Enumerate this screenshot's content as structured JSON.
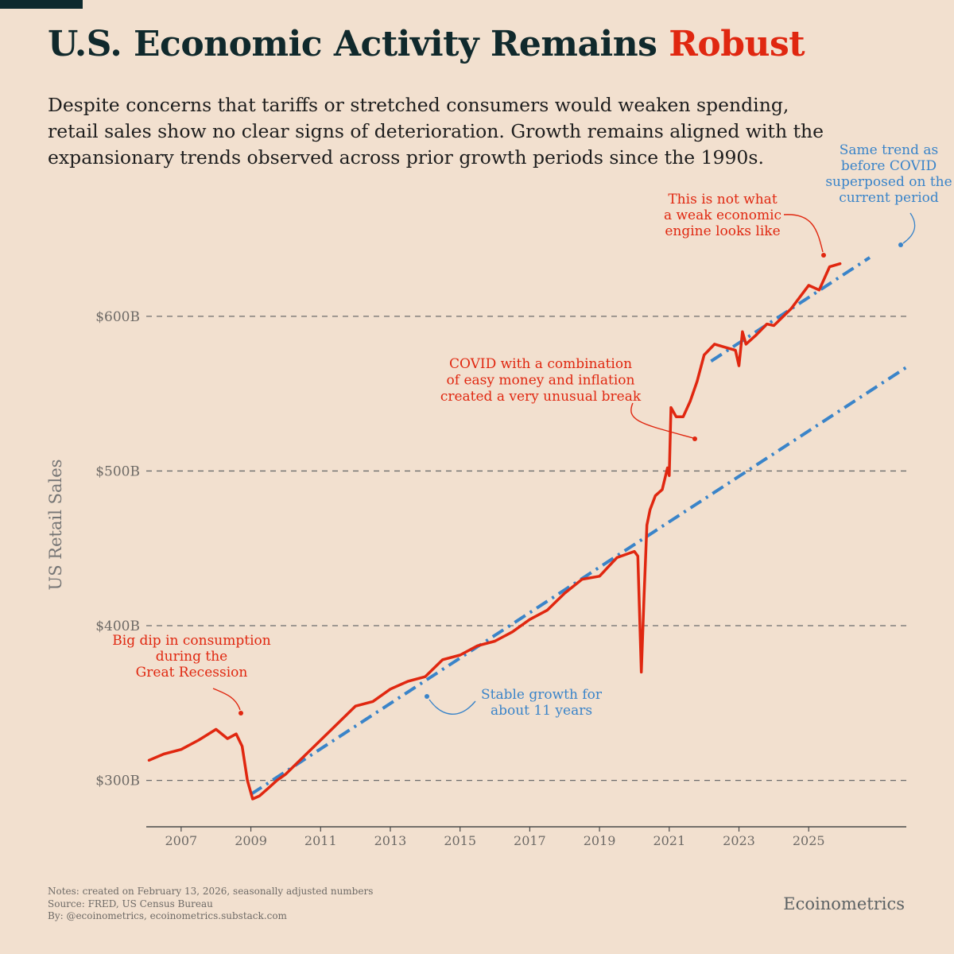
{
  "title": {
    "main": "U.S. Economic Activity Remains",
    "accent": "Robust"
  },
  "subtitle": "Despite concerns that tariffs or stretched consumers would weaken spending, retail sales show no clear signs of deterioration. Growth remains aligned with the expansionary trends observed across prior growth periods since the 1990s.",
  "colors": {
    "background": "#f2e0cf",
    "series": "#e02710",
    "trend": "#3a84c9",
    "title": "#10292c",
    "accent": "#e02710",
    "grid": "#6d6d6d"
  },
  "chart_data": {
    "type": "line",
    "ylabel": "US Retail Sales",
    "xlabel": "",
    "xlim": [
      2006.0,
      2027.8
    ],
    "ylim": [
      270,
      640
    ],
    "grid": "horizontal dashed",
    "x_ticks": [
      2007,
      2009,
      2011,
      2013,
      2015,
      2017,
      2019,
      2021,
      2023,
      2025
    ],
    "x_tick_labels": [
      "2007",
      "2009",
      "2011",
      "2013",
      "2015",
      "2017",
      "2019",
      "2021",
      "2023",
      "2025"
    ],
    "y_ticks": [
      300,
      400,
      500,
      600
    ],
    "y_tick_labels": [
      "$300B",
      "$400B",
      "$500B",
      "$600B"
    ],
    "series": [
      {
        "name": "US Retail Sales ($B)",
        "x": [
          2006.08,
          2006.5,
          2007.0,
          2007.5,
          2008.0,
          2008.33,
          2008.58,
          2008.75,
          2008.9,
          2009.05,
          2009.25,
          2009.5,
          2009.75,
          2010.0,
          2010.5,
          2011.0,
          2011.5,
          2012.0,
          2012.5,
          2013.0,
          2013.5,
          2014.0,
          2014.5,
          2015.0,
          2015.5,
          2016.0,
          2016.5,
          2017.0,
          2017.5,
          2018.0,
          2018.5,
          2019.0,
          2019.5,
          2020.0,
          2020.1,
          2020.2,
          2020.28,
          2020.36,
          2020.45,
          2020.6,
          2020.8,
          2020.95,
          2021.0,
          2021.05,
          2021.2,
          2021.4,
          2021.6,
          2021.8,
          2022.0,
          2022.3,
          2022.6,
          2022.9,
          2023.0,
          2023.1,
          2023.2,
          2023.5,
          2023.8,
          2024.0,
          2024.5,
          2025.0,
          2025.3,
          2025.6,
          2025.9
        ],
        "values": [
          313,
          317,
          320,
          326,
          333,
          327,
          330,
          322,
          300,
          288,
          290,
          295,
          300,
          304,
          315,
          326,
          337,
          348,
          351,
          359,
          364,
          367,
          378,
          381,
          387,
          390,
          396,
          404,
          410,
          421,
          430,
          432,
          444,
          448,
          445,
          370,
          420,
          465,
          475,
          484,
          488,
          502,
          497,
          541,
          535,
          535,
          545,
          558,
          575,
          582,
          580,
          578,
          568,
          590,
          582,
          588,
          595,
          594,
          605,
          620,
          617,
          632,
          634
        ]
      },
      {
        "name": "Pre-COVID trend",
        "style": "dash-dot",
        "x": [
          2009.0,
          2027.8
        ],
        "values": [
          291,
          567
        ]
      },
      {
        "name": "Pre-COVID trend superposed on current period",
        "style": "dash-dot",
        "x": [
          2022.2,
          2026.75
        ],
        "values": [
          571,
          638
        ]
      }
    ],
    "annotations": [
      {
        "text": "Big dip in consumption during the Great Recession",
        "lines": [
          "Big dip in consumption",
          "during the",
          "Great Recession"
        ],
        "color": "#e02710"
      },
      {
        "text": "Stable growth for about 11 years",
        "lines": [
          "Stable growth for",
          "about 11 years"
        ],
        "color": "#3a84c9"
      },
      {
        "text": "COVID with a combination of easy money and inflation created a very unusual break",
        "lines": [
          "COVID with a combination",
          "of easy money and inflation",
          "created a very unusual break"
        ],
        "color": "#e02710"
      },
      {
        "text": "This is not what a weak economic engine looks like",
        "lines": [
          "This is not what",
          "a weak economic",
          "engine looks like"
        ],
        "color": "#e02710"
      },
      {
        "text": "Same trend as before COVID superposed on the current period",
        "lines": [
          "Same trend as",
          "before COVID",
          "superposed on the",
          "current period"
        ],
        "color": "#3a84c9"
      }
    ]
  },
  "footer": {
    "notes": "Notes: created on February 13, 2026, seasonally adjusted numbers",
    "source": "Source: FRED, US Census Bureau",
    "by": "By: @ecoinometrics, ecoinometrics.substack.com"
  },
  "brand": "Ecoinometrics"
}
